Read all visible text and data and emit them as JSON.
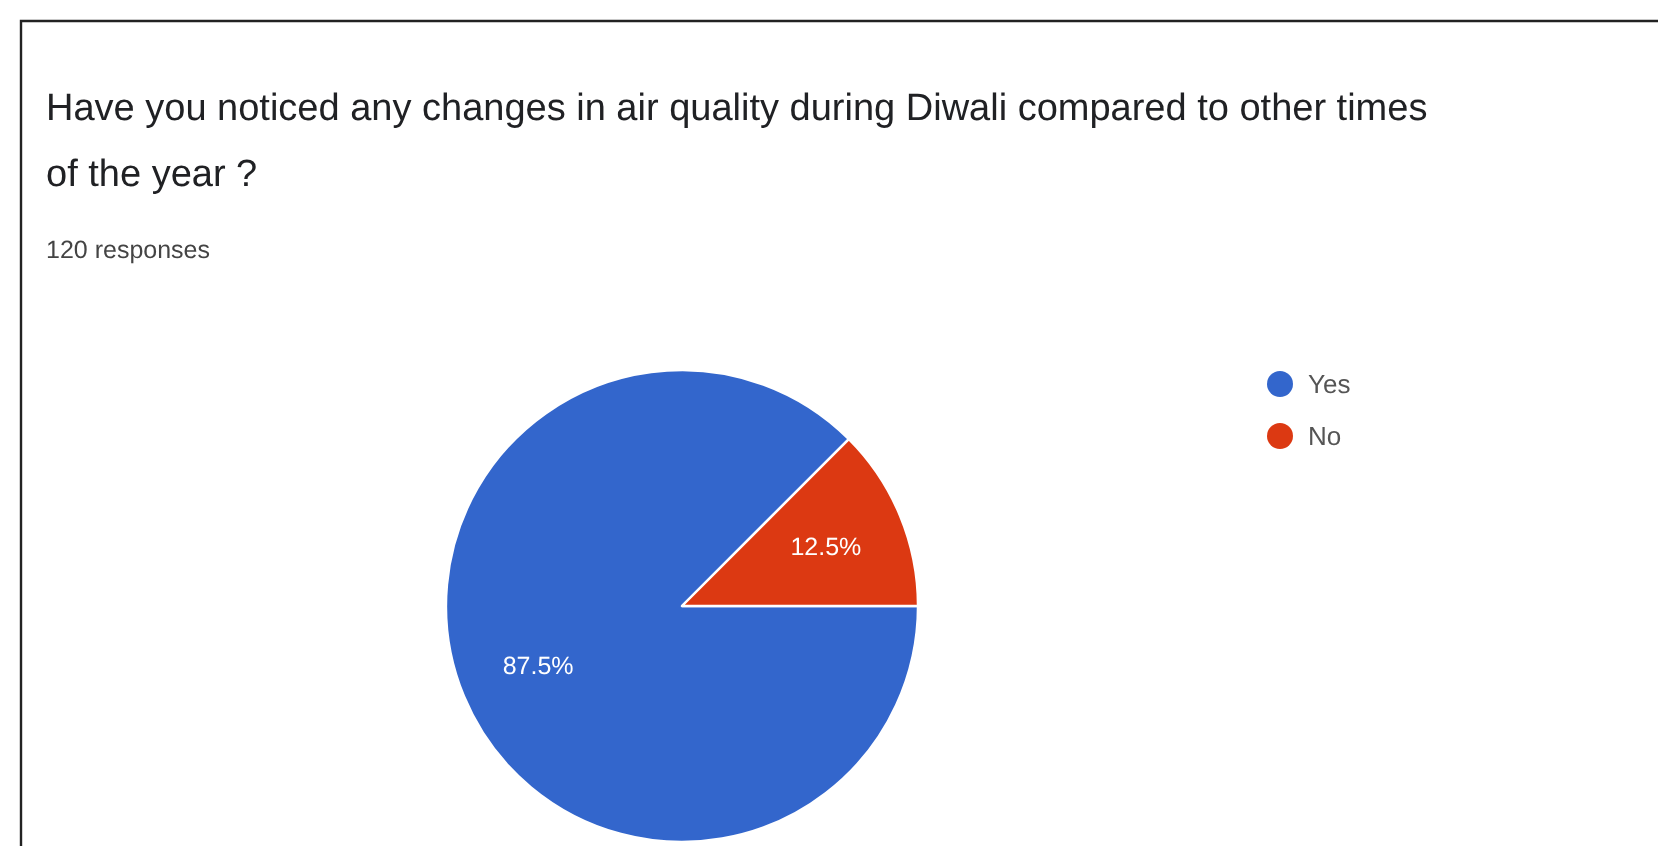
{
  "chart_data": {
    "type": "pie",
    "title": "Have you noticed any changes in air quality during Diwali compared to other times of the year ?",
    "subtitle": "120 responses",
    "categories": [
      "Yes",
      "No"
    ],
    "values": [
      87.5,
      12.5
    ],
    "colors": [
      "#3366cc",
      "#dc3912"
    ],
    "value_labels": [
      "87.5%",
      "12.5%"
    ],
    "legend": "right"
  }
}
